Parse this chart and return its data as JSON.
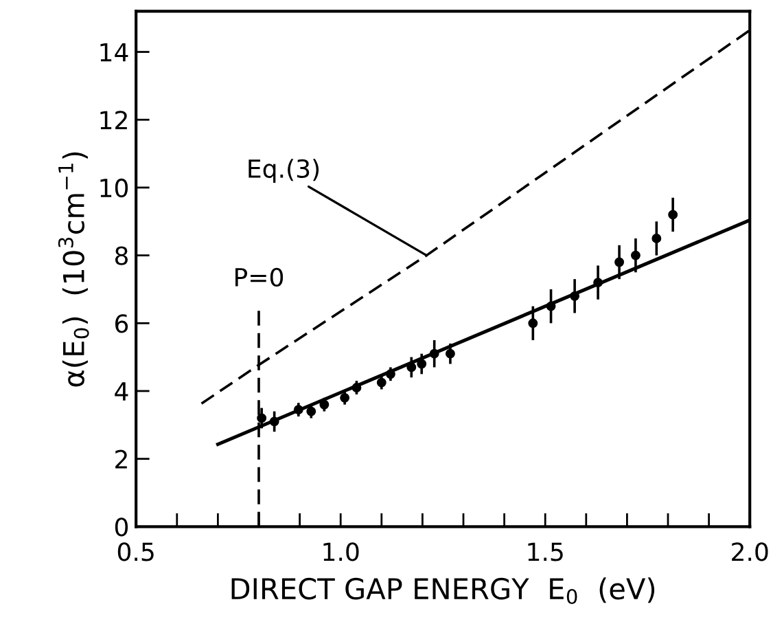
{
  "chart_data": {
    "type": "scatter",
    "xlabel": "DIRECT GAP ENERGY  E$_{0}$  (eV)",
    "ylabel": "α(E$_{0}$)  (10$^{3}$cm$^{−1}$)",
    "xlim": [
      0.5,
      2.0
    ],
    "ylim": [
      0,
      15.2
    ],
    "xticks": [
      0.5,
      {
        "value": 0.6,
        "label": null
      },
      {
        "value": 0.7,
        "label": null
      },
      {
        "value": 0.8,
        "label": null
      },
      {
        "value": 0.9,
        "label": null
      },
      {
        "value": 1.0,
        "label": "1.0"
      },
      {
        "value": 1.1,
        "label": null
      },
      {
        "value": 1.2,
        "label": null
      },
      {
        "value": 1.3,
        "label": null
      },
      {
        "value": 1.4,
        "label": null
      },
      1.5,
      {
        "value": 1.6,
        "label": null
      },
      {
        "value": 1.7,
        "label": null
      },
      {
        "value": 1.8,
        "label": null
      },
      {
        "value": 1.9,
        "label": null
      },
      {
        "value": 2.0,
        "label": "2.0"
      }
    ],
    "yticks": [
      0,
      2,
      4,
      6,
      8,
      10,
      12,
      14
    ],
    "grid": false,
    "series": [
      {
        "color": "#000000",
        "marker": "circle",
        "x": [
          0.807,
          0.838,
          0.897,
          0.928,
          0.96,
          1.01,
          1.039,
          1.1,
          1.122,
          1.173,
          1.198,
          1.229,
          1.268,
          1.47,
          1.514,
          1.572,
          1.629,
          1.681,
          1.721,
          1.772,
          1.812
        ],
        "values": [
          3.2,
          3.1,
          3.45,
          3.4,
          3.6,
          3.8,
          4.1,
          4.25,
          4.5,
          4.7,
          4.8,
          5.1,
          5.1,
          6.0,
          6.5,
          6.8,
          7.2,
          7.8,
          8.0,
          8.5,
          9.2
        ],
        "errors": [
          0.3,
          0.3,
          0.2,
          0.2,
          0.2,
          0.2,
          0.2,
          0.2,
          0.2,
          0.3,
          0.3,
          0.4,
          0.3,
          0.5,
          0.5,
          0.5,
          0.5,
          0.5,
          0.5,
          0.5,
          0.5
        ]
      },
      {
        "type": "line",
        "color": "#000000",
        "line_style": "solid",
        "x": [
          0.7,
          2.0
        ],
        "values": [
          2.43,
          9.04
        ]
      },
      {
        "type": "line",
        "color": "#000000",
        "line_style": "dashed",
        "x": [
          0.66,
          0.8,
          1.21,
          2.0
        ],
        "values": [
          3.63,
          4.77,
          8.0,
          14.64
        ]
      }
    ],
    "ref_lines": [
      {
        "axis": "x",
        "value": 0.8,
        "line_style": "dashed",
        "color": "#000000"
      }
    ],
    "annotations": [
      {
        "text": "Eq.(3)",
        "x": 1.21,
        "y": 8.0
      },
      {
        "text": "P=0",
        "x": 0.8,
        "y": 6.6
      }
    ]
  }
}
